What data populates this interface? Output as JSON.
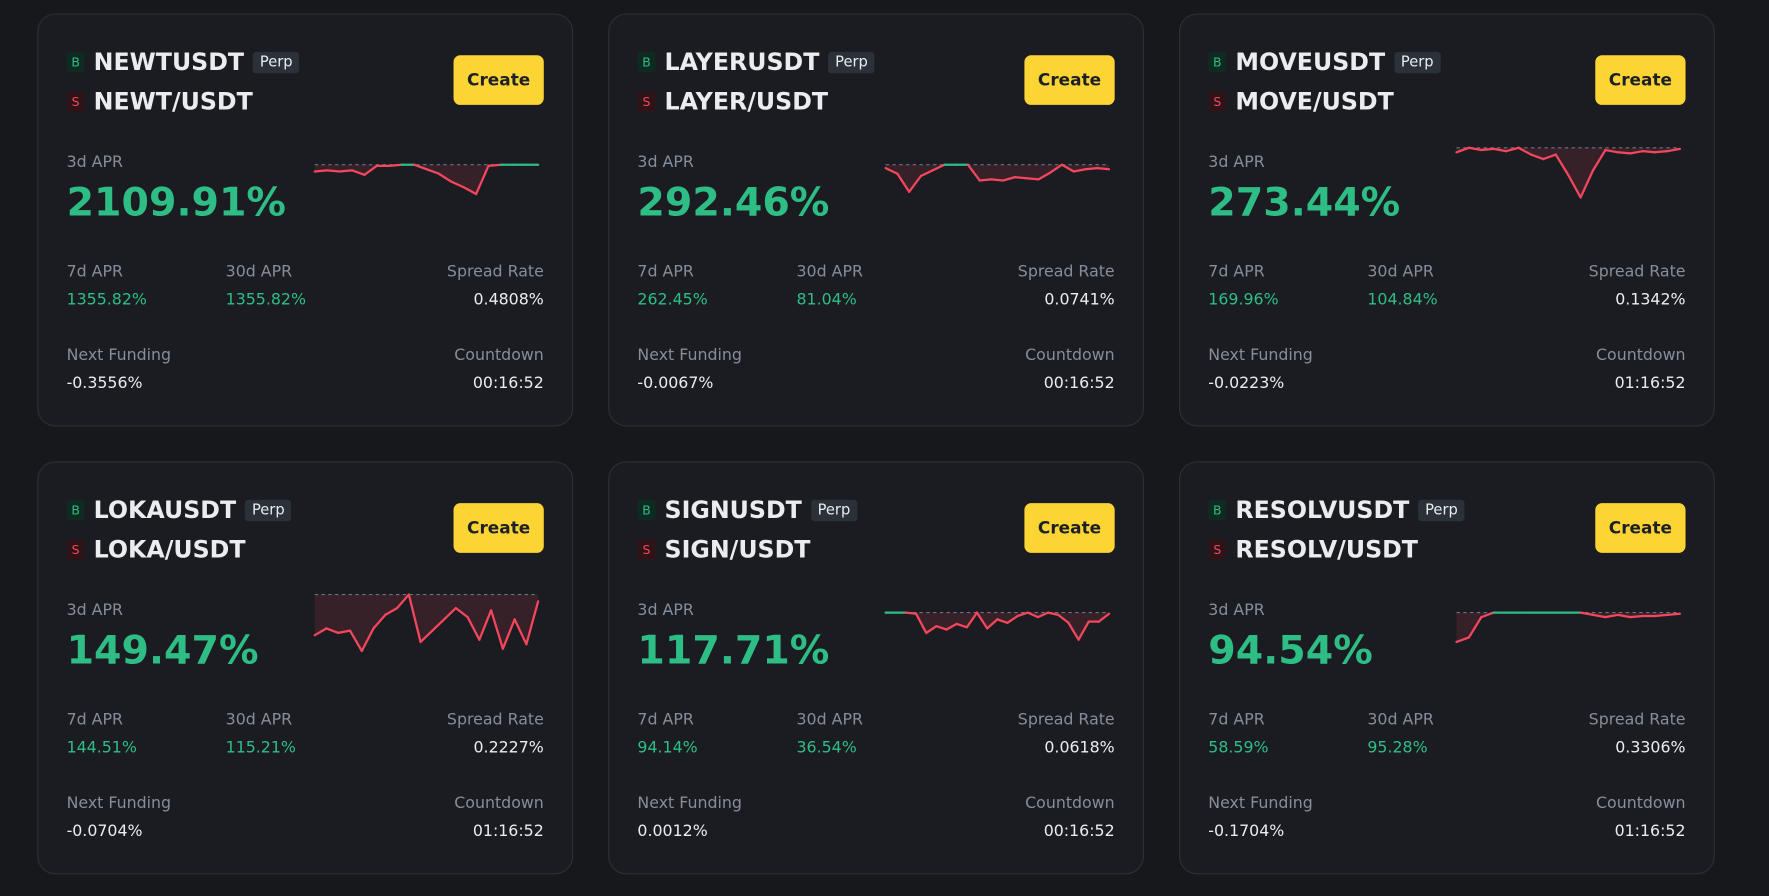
{
  "cards": [
    {
      "buy_tag": "B",
      "perp_symbol": "NEWTUSDT",
      "perp_badge": "Perp",
      "sell_tag": "S",
      "spot_symbol": "NEWT/USDT",
      "button": "Create",
      "apr3d_label": "3d APR",
      "apr3d": "2109.91%",
      "apr7d_label": "7d APR",
      "apr7d": "1355.82%",
      "apr30d_label": "30d APR",
      "apr30d": "1355.82%",
      "spread_label": "Spread Rate",
      "spread": "0.4808%",
      "next_funding_label": "Next Funding",
      "next_funding": "-0.3556%",
      "countdown_label": "Countdown",
      "countdown": "00:16:52",
      "sparkline": {
        "ylim": [
          -0.34,
          0.16
        ],
        "values": [
          -0.06,
          -0.05,
          -0.06,
          -0.05,
          -0.09,
          -0.01,
          -0.01,
          0,
          0,
          -0.04,
          -0.08,
          -0.15,
          -0.2,
          -0.26,
          -0.01,
          0,
          0,
          0,
          0
        ]
      }
    },
    {
      "buy_tag": "B",
      "perp_symbol": "LAYERUSDT",
      "perp_badge": "Perp",
      "sell_tag": "S",
      "spot_symbol": "LAYER/USDT",
      "button": "Create",
      "apr3d_label": "3d APR",
      "apr3d": "292.46%",
      "apr7d_label": "7d APR",
      "apr7d": "262.45%",
      "apr30d_label": "30d APR",
      "apr30d": "81.04%",
      "spread_label": "Spread Rate",
      "spread": "0.0741%",
      "next_funding_label": "Next Funding",
      "next_funding": "-0.0067%",
      "countdown_label": "Countdown",
      "countdown": "00:16:52",
      "sparkline": {
        "ylim": [
          -0.34,
          0.16
        ],
        "values": [
          -0.03,
          -0.08,
          -0.24,
          -0.1,
          -0.05,
          0,
          0,
          0,
          -0.14,
          -0.13,
          -0.14,
          -0.11,
          -0.12,
          -0.13,
          -0.07,
          0,
          -0.06,
          -0.04,
          -0.03,
          -0.04
        ]
      }
    },
    {
      "buy_tag": "B",
      "perp_symbol": "MOVEUSDT",
      "perp_badge": "Perp",
      "sell_tag": "S",
      "spot_symbol": "MOVE/USDT",
      "button": "Create",
      "apr3d_label": "3d APR",
      "apr3d": "273.44%",
      "apr7d_label": "7d APR",
      "apr7d": "169.96%",
      "apr30d_label": "30d APR",
      "apr30d": "104.84%",
      "spread_label": "Spread Rate",
      "spread": "0.1342%",
      "next_funding_label": "Next Funding",
      "next_funding": "-0.0223%",
      "countdown_label": "Countdown",
      "countdown": "01:16:52",
      "sparkline": {
        "ylim": [
          -0.49,
          0.01
        ],
        "values": [
          -0.04,
          0,
          -0.02,
          -0.01,
          -0.03,
          0,
          -0.06,
          -0.1,
          -0.06,
          -0.24,
          -0.44,
          -0.2,
          -0.02,
          -0.04,
          -0.05,
          -0.03,
          -0.04,
          -0.03,
          -0.01
        ]
      }
    },
    {
      "buy_tag": "B",
      "perp_symbol": "LOKAUSDT",
      "perp_badge": "Perp",
      "sell_tag": "S",
      "spot_symbol": "LOKA/USDT",
      "button": "Create",
      "apr3d_label": "3d APR",
      "apr3d": "149.47%",
      "apr7d_label": "7d APR",
      "apr7d": "144.51%",
      "apr30d_label": "30d APR",
      "apr30d": "115.21%",
      "spread_label": "Spread Rate",
      "spread": "0.2227%",
      "next_funding_label": "Next Funding",
      "next_funding": "-0.0704%",
      "countdown_label": "Countdown",
      "countdown": "01:16:52",
      "sparkline": {
        "ylim": [
          -0.5,
          0
        ],
        "values": [
          -0.36,
          -0.3,
          -0.34,
          -0.32,
          -0.5,
          -0.3,
          -0.18,
          -0.12,
          0,
          -0.42,
          -0.32,
          -0.22,
          -0.12,
          -0.2,
          -0.4,
          -0.14,
          -0.48,
          -0.22,
          -0.44,
          -0.06
        ]
      }
    },
    {
      "buy_tag": "B",
      "perp_symbol": "SIGNUSDT",
      "perp_badge": "Perp",
      "sell_tag": "S",
      "spot_symbol": "SIGN/USDT",
      "button": "Create",
      "apr3d_label": "3d APR",
      "apr3d": "117.71%",
      "apr7d_label": "7d APR",
      "apr7d": "94.14%",
      "apr30d_label": "30d APR",
      "apr30d": "36.54%",
      "spread_label": "Spread Rate",
      "spread": "0.0618%",
      "next_funding_label": "Next Funding",
      "next_funding": "0.0012%",
      "countdown_label": "Countdown",
      "countdown": "00:16:52",
      "sparkline": {
        "ylim": [
          -0.34,
          0.16
        ],
        "values": [
          0,
          0,
          0,
          -0.01,
          -0.18,
          -0.12,
          -0.15,
          -0.1,
          -0.13,
          0,
          -0.14,
          -0.06,
          -0.09,
          -0.03,
          0,
          -0.04,
          0,
          -0.02,
          -0.09,
          -0.24,
          -0.08,
          -0.08,
          -0.01
        ]
      }
    },
    {
      "buy_tag": "B",
      "perp_symbol": "RESOLVUSDT",
      "perp_badge": "Perp",
      "sell_tag": "S",
      "spot_symbol": "RESOLV/USDT",
      "button": "Create",
      "apr3d_label": "3d APR",
      "apr3d": "94.54%",
      "apr7d_label": "7d APR",
      "apr7d": "58.59%",
      "apr30d_label": "30d APR",
      "apr30d": "95.28%",
      "spread_label": "Spread Rate",
      "spread": "0.3306%",
      "next_funding_label": "Next Funding",
      "next_funding": "-0.1704%",
      "countdown_label": "Countdown",
      "countdown": "01:16:52",
      "sparkline": {
        "ylim": [
          -0.34,
          0.16
        ],
        "values": [
          -0.26,
          -0.22,
          -0.04,
          0,
          0,
          0,
          0,
          0,
          0,
          0,
          0,
          -0.02,
          -0.04,
          -0.02,
          -0.04,
          -0.03,
          -0.03,
          -0.02,
          -0.01
        ]
      }
    }
  ]
}
